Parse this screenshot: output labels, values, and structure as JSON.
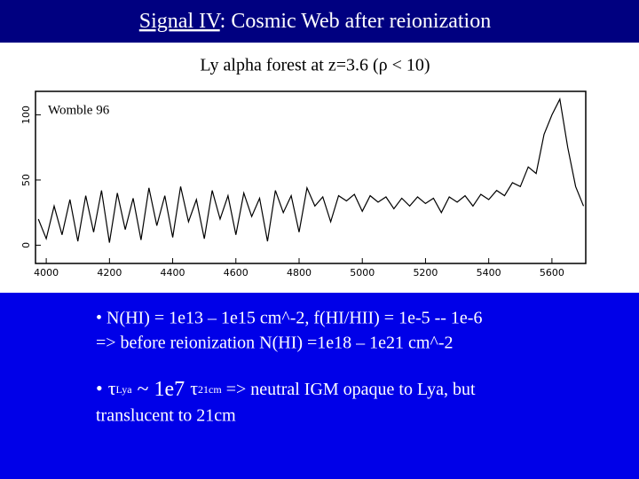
{
  "header": {
    "title_link": "Signal IV",
    "title_rest": ": Cosmic Web after reionization"
  },
  "subtitle": "Ly alpha forest at z=3.6 (ρ < 10)",
  "chart_data": {
    "type": "line",
    "annotation": "Womble 96",
    "color": "#000000",
    "x": [
      3975,
      4000,
      4025,
      4050,
      4075,
      4100,
      4125,
      4150,
      4175,
      4200,
      4225,
      4250,
      4275,
      4300,
      4325,
      4350,
      4375,
      4400,
      4425,
      4450,
      4475,
      4500,
      4525,
      4550,
      4575,
      4600,
      4625,
      4650,
      4675,
      4700,
      4725,
      4750,
      4775,
      4800,
      4825,
      4850,
      4875,
      4900,
      4925,
      4950,
      4975,
      5000,
      5025,
      5050,
      5075,
      5100,
      5125,
      5150,
      5175,
      5200,
      5225,
      5250,
      5275,
      5300,
      5325,
      5350,
      5375,
      5400,
      5425,
      5450,
      5475,
      5500,
      5525,
      5550,
      5575,
      5600,
      5625,
      5650,
      5675,
      5700
    ],
    "values": [
      20,
      5,
      30,
      8,
      35,
      3,
      38,
      10,
      42,
      2,
      40,
      12,
      36,
      4,
      44,
      15,
      38,
      6,
      45,
      18,
      35,
      5,
      42,
      20,
      38,
      8,
      40,
      22,
      36,
      3,
      42,
      25,
      38,
      10,
      44,
      30,
      37,
      18,
      38,
      34,
      39,
      26,
      38,
      33,
      37,
      28,
      36,
      30,
      37,
      32,
      36,
      25,
      37,
      33,
      38,
      30,
      39,
      35,
      42,
      38,
      48,
      45,
      60,
      55,
      85,
      100,
      112,
      75,
      45,
      30
    ],
    "xlim": [
      3966,
      5707
    ],
    "ylim": [
      -14,
      118
    ],
    "xticks": [
      4000,
      4200,
      4400,
      4600,
      4800,
      5000,
      5200,
      5400,
      5600
    ],
    "yticks": [
      0,
      50,
      100
    ]
  },
  "bullets": {
    "line1": "• N(HI) = 1e13 – 1e15 cm^-2,   f(HI/HII) = 1e-5 -- 1e-6",
    "line2": "=> before reionization N(HI) =1e18 – 1e21 cm^-2",
    "b2_dot": "•",
    "b2_tau1": "τ",
    "b2_sub1": "Lya",
    "b2_mid": " ~ 1e7 ",
    "b2_tau2": "τ",
    "b2_sub2": "21cm",
    "b2_rest": " => neutral IGM opaque to Lya, but",
    "line4": "translucent to 21cm"
  }
}
